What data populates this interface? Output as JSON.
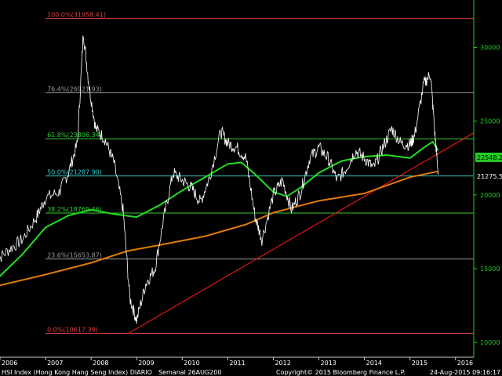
{
  "chart_data": {
    "type": "line",
    "x_range": [
      2006.0,
      2016.4
    ],
    "ylim": [
      9000,
      33000
    ],
    "y_ticks": [
      10000,
      15000,
      20000,
      25000,
      30000
    ],
    "x_tick_labels": [
      "2006",
      "2007",
      "2008",
      "2009",
      "2010",
      "2011",
      "2012",
      "2013",
      "2014",
      "2015",
      "2016"
    ],
    "x_tick_positions": [
      2006,
      2007,
      2008,
      2009,
      2010,
      2011,
      2012,
      2013,
      2014,
      2015,
      2016
    ],
    "fib_levels": [
      {
        "label": "100.0%(31958.41)",
        "value": 31958.41,
        "color": "#d94040"
      },
      {
        "label": "76.4%(26921.93)",
        "value": 26921.93,
        "color": "#9a9a9a"
      },
      {
        "label": "61.8%(23806.34)",
        "value": 23806.34,
        "color": "#33cc33"
      },
      {
        "label": "50.0%(21287.90)",
        "value": 21287.9,
        "color": "#33cccc"
      },
      {
        "label": "38.2%(18769.46)",
        "value": 18769.46,
        "color": "#33cc33"
      },
      {
        "label": "23.6%(15653.87)",
        "value": 15653.87,
        "color": "#9a9a9a"
      },
      {
        "label": "0.0%(10617.39)",
        "value": 10617.39,
        "color": "#d94040"
      }
    ],
    "price_labels": [
      {
        "text": "22548.24",
        "value": 22548.24,
        "bg": "#22cc22",
        "fg": "#000000"
      },
      {
        "text": "21275.56",
        "value": 21275.56,
        "bg": "#000000",
        "fg": "#ffffff"
      }
    ],
    "series": [
      {
        "kind": "price",
        "color": "#ffffff",
        "x": [
          2005.9,
          2006.2,
          2006.5,
          2006.8,
          2007.0,
          2007.3,
          2007.5,
          2007.7,
          2007.83,
          2007.95,
          2008.1,
          2008.3,
          2008.5,
          2008.7,
          2008.85,
          2009.0,
          2009.2,
          2009.4,
          2009.6,
          2009.8,
          2010.0,
          2010.2,
          2010.4,
          2010.6,
          2010.85,
          2011.0,
          2011.2,
          2011.4,
          2011.6,
          2011.75,
          2012.0,
          2012.2,
          2012.4,
          2012.6,
          2012.8,
          2013.0,
          2013.2,
          2013.4,
          2013.6,
          2013.8,
          2014.0,
          2014.2,
          2014.4,
          2014.6,
          2014.8,
          2015.0,
          2015.1,
          2015.3,
          2015.45,
          2015.55,
          2015.62
        ],
        "y": [
          15500,
          16300,
          17000,
          18500,
          19800,
          20200,
          21500,
          23500,
          31000,
          27500,
          24500,
          23800,
          22200,
          19000,
          13000,
          11500,
          14000,
          15000,
          18500,
          21500,
          21000,
          20500,
          19500,
          21200,
          24300,
          23500,
          23200,
          22500,
          18500,
          17000,
          20000,
          21000,
          19000,
          20200,
          22500,
          23200,
          22500,
          21000,
          21800,
          23000,
          22500,
          21800,
          23200,
          24500,
          23500,
          23400,
          24000,
          27500,
          28200,
          24000,
          21500
        ]
      },
      {
        "kind": "ma_long",
        "color": "#e07a0a",
        "x": [
          2005.9,
          2007.0,
          2008.0,
          2008.8,
          2009.5,
          2010.5,
          2011.4,
          2012.0,
          2013.0,
          2014.0,
          2015.0,
          2015.62
        ],
        "y": [
          13800,
          14600,
          15400,
          16200,
          16600,
          17200,
          18000,
          18800,
          19600,
          20100,
          21200,
          21600
        ]
      },
      {
        "kind": "ma_short",
        "color": "#22dd22",
        "x": [
          2005.9,
          2006.5,
          2007.0,
          2007.5,
          2008.0,
          2008.5,
          2009.0,
          2009.5,
          2010.0,
          2010.5,
          2011.0,
          2011.3,
          2011.6,
          2012.0,
          2012.3,
          2012.6,
          2013.0,
          2013.5,
          2014.0,
          2014.5,
          2015.0,
          2015.3,
          2015.5,
          2015.62
        ],
        "y": [
          14200,
          16000,
          17800,
          18600,
          19000,
          18700,
          18500,
          19300,
          20300,
          21200,
          22100,
          22200,
          21400,
          20200,
          19900,
          20500,
          21500,
          22300,
          22600,
          22700,
          22500,
          23200,
          23600,
          23000
        ]
      },
      {
        "kind": "trend",
        "color": "#e01515",
        "x": [
          2008.82,
          2016.4
        ],
        "y": [
          10617.39,
          24200
        ]
      }
    ],
    "footer": {
      "title": "HSI Index (Hong Kong Hang Seng Index) DIARIO",
      "subtitle": "Semanal 26AUG200",
      "copyright": "Copyright© 2015 Bloomberg Finance L.P.",
      "timestamp": "24-Aug-2015 09:16:17"
    }
  }
}
